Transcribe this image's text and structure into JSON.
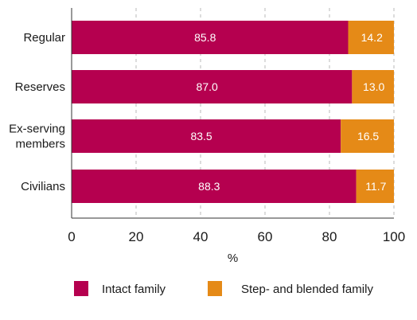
{
  "chart_data": {
    "type": "bar",
    "orientation": "horizontal",
    "stacked": true,
    "categories": [
      "Regular",
      "Reserves",
      "Ex-serving\nmembers",
      "Civilians"
    ],
    "series": [
      {
        "name": "Intact family",
        "values": [
          85.8,
          87.0,
          83.5,
          88.3
        ],
        "labels": [
          "85.8",
          "87.0",
          "83.5",
          "88.3"
        ],
        "color": "#b5004f"
      },
      {
        "name": "Step- and blended family",
        "values": [
          14.2,
          13.0,
          16.5,
          11.7
        ],
        "labels": [
          "14.2",
          "13.0",
          "16.5",
          "11.7"
        ],
        "color": "#e58a17"
      }
    ],
    "xlabel": "%",
    "xlim": [
      0,
      100
    ],
    "xticks": [
      0,
      20,
      40,
      60,
      80,
      100
    ],
    "xtick_labels": [
      "0",
      "20",
      "40",
      "60",
      "80",
      "100"
    ],
    "grid": "vertical dashed",
    "legend_position": "bottom"
  }
}
